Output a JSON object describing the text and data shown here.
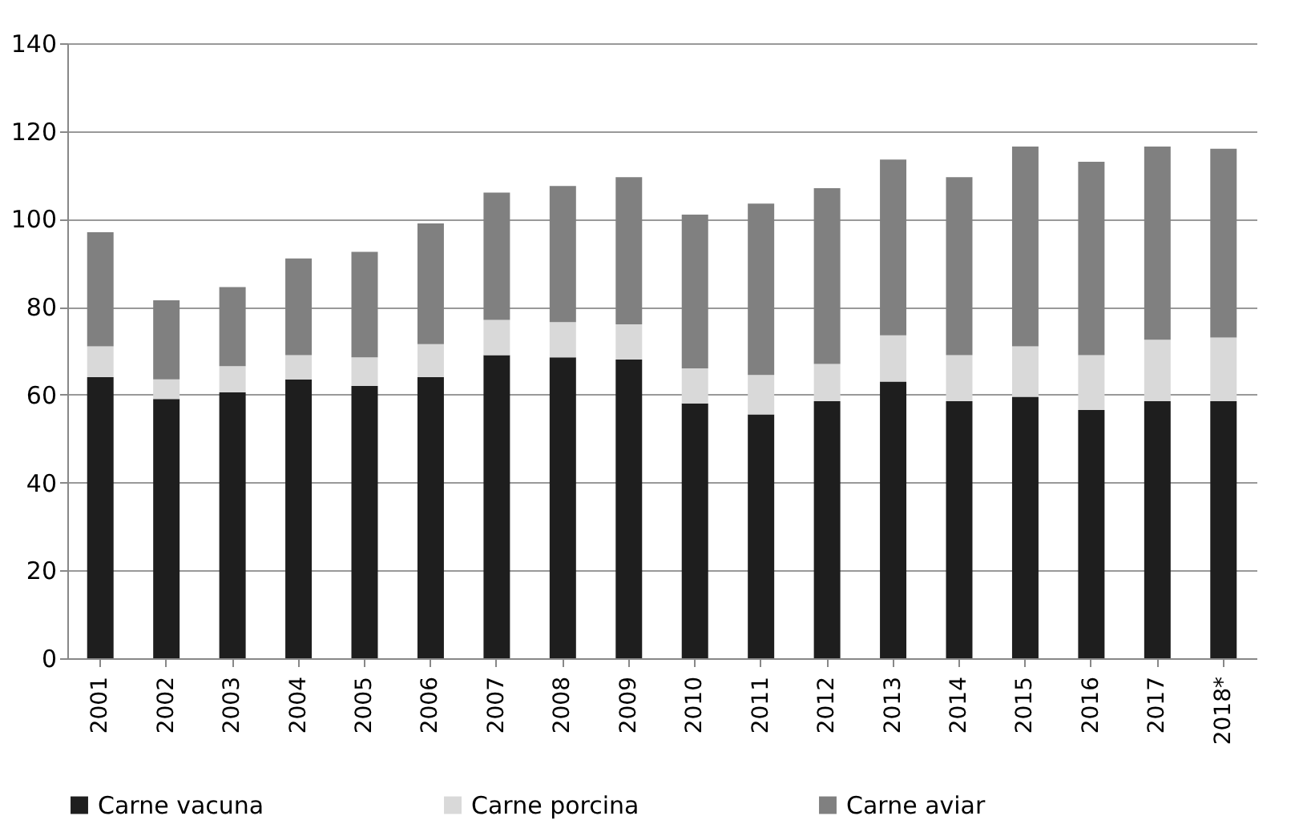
{
  "chart_data": {
    "type": "bar",
    "stacked": true,
    "categories": [
      "2001",
      "2002",
      "2003",
      "2004",
      "2005",
      "2006",
      "2007",
      "2008",
      "2009",
      "2010",
      "2011",
      "2012",
      "2013",
      "2014",
      "2015",
      "2016",
      "2017",
      "2018*"
    ],
    "series": [
      {
        "name": "Carne vacuna",
        "color": "#1e1e1e",
        "values": [
          64,
          59,
          60.5,
          63.5,
          62,
          64,
          69,
          68.5,
          68,
          58,
          55.5,
          58.5,
          63,
          58.5,
          59.5,
          56.5,
          58.5,
          58.5
        ]
      },
      {
        "name": "Carne porcina",
        "color": "#d9d9d9",
        "values": [
          7,
          4.5,
          6,
          5.5,
          6.5,
          7.5,
          8,
          8,
          8,
          8,
          9,
          8.5,
          10.5,
          10.5,
          11.5,
          12.5,
          14,
          14.5
        ]
      },
      {
        "name": "Carne aviar",
        "color": "#808080",
        "values": [
          26,
          18,
          18,
          22,
          24,
          27.5,
          29,
          31,
          33.5,
          35,
          39,
          40,
          40,
          40.5,
          45.5,
          44,
          44,
          43
        ]
      }
    ],
    "ylim": [
      0,
      140
    ],
    "yticks": [
      0,
      20,
      40,
      60,
      80,
      100,
      120,
      140
    ],
    "grid": "y",
    "legend": "bottom"
  }
}
